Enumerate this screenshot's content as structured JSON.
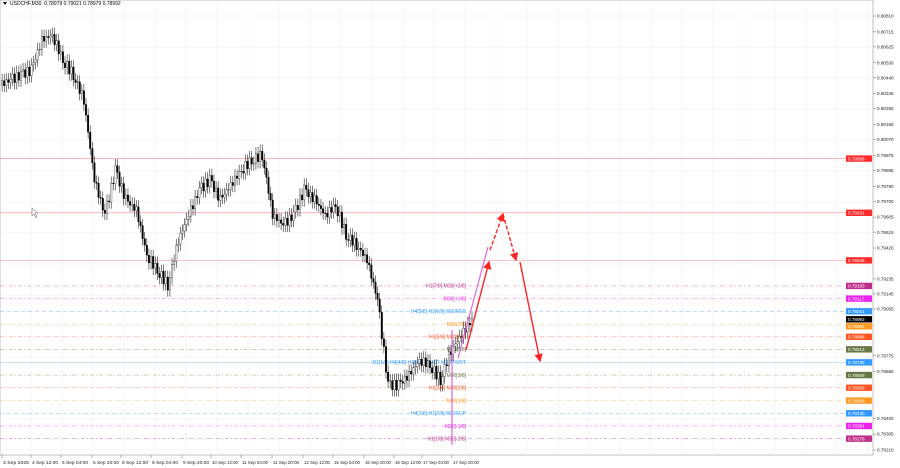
{
  "header": {
    "symbol_timeframe": "USDCHF,M30",
    "ohlc": "0.78979 0.79021 0.78979 0.78992"
  },
  "colors": {
    "candles": "#000000",
    "grid": "#ececec",
    "resistance_line": "#f08080",
    "arrow": "#ff2222",
    "trend_line": "#dd66dd"
  },
  "chart_data": {
    "type": "line",
    "title": "USDCHF,M30",
    "xlabel": "",
    "ylabel": "",
    "ylim": [
      0.7821,
      0.8081
    ],
    "grid": true,
    "x_ticks": [
      "3 Sep 2025",
      "4 Sep 12:00",
      "5 Sep 04:00",
      "5 Sep 20:00",
      "8 Sep 12:00",
      "9 Sep 04:00",
      "9 Sep 20:00",
      "10 Sep 12:00",
      "11 Sep 04:00",
      "11 Sep 20:00",
      "12 Sep 12:00",
      "15 Sep 04:00",
      "15 Sep 20:00",
      "16 Sep 12:00",
      "17 Sep 04:00",
      "17 Sep 20:00"
    ],
    "y_ticks": [
      0.8081,
      0.80715,
      0.80625,
      0.8053,
      0.8044,
      0.80345,
      0.80255,
      0.8016,
      0.8007,
      0.79975,
      0.79885,
      0.7979,
      0.797,
      0.79605,
      0.79515,
      0.7942,
      0.79235,
      0.79145,
      0.79055,
      0.78775,
      0.7868,
      0.784,
      0.78305,
      0.7821
    ],
    "series": [
      {
        "values": [
          0.80397,
          0.80427,
          0.80457,
          0.80487,
          0.80666,
          0.80696,
          0.80546,
          0.80457,
          0.80307,
          0.79827,
          0.79618,
          0.79887,
          0.79708,
          0.79648,
          0.79378,
          0.79288,
          0.79198,
          0.79468,
          0.79618,
          0.79768,
          0.79827,
          0.79708,
          0.79798,
          0.79887,
          0.79947,
          0.79977,
          0.79618,
          0.79558,
          0.79618,
          0.79768,
          0.79708,
          0.79618,
          0.79678,
          0.79498,
          0.79438,
          0.79348,
          0.79109,
          0.78599,
          0.78599,
          0.78659,
          0.78749,
          0.78719,
          0.78629,
          0.78809,
          0.78899,
          0.78989
        ]
      }
    ],
    "levels": [
      {
        "price": "0.79956",
        "label": "",
        "color": "#ff2a2a",
        "style": "solid"
      },
      {
        "price": "0.79631",
        "label": "",
        "color": "#ff2a2a",
        "style": "solid"
      },
      {
        "price": "0.79346",
        "label": "",
        "color": "#ff2a2a",
        "style": "solid"
      },
      {
        "price": "0.79193",
        "label": "H1[7/8] M30[+2/8]",
        "color": "#c0308a",
        "style": "dashdot"
      },
      {
        "price": "0.79117",
        "label": "M30[+1/8]",
        "color": "#ee22ee",
        "style": "dashdot"
      },
      {
        "price": "0.79041",
        "label": "H4[5/8] H1[6/8] M30RES",
        "color": "#3399ff",
        "style": "dash"
      },
      {
        "price": "0.78993",
        "label": "",
        "color": "#000000",
        "style": "none"
      },
      {
        "price": "0.78964",
        "label": "M30[7/8]",
        "color": "#ff9922",
        "style": "dashdot"
      },
      {
        "price": "0.78888",
        "label": "H1[5/8] M30[6/8]",
        "color": "#ff5522",
        "style": "dashdot"
      },
      {
        "price": "0.78813",
        "label": "M30[5/8]",
        "color": "#667744",
        "style": "dashdot"
      },
      {
        "price": "0.78735",
        "label": "D1[1/8] H4[4/8] H1[4/8] PIVOT M30PIVOT",
        "color": "#3399ff",
        "style": "solid"
      },
      {
        "price": "0.78659",
        "label": "M30[3/8]",
        "color": "#667744",
        "style": "dashdot"
      },
      {
        "price": "0.78583",
        "label": "H1[3/8] M30[2/8]",
        "color": "#ff5522",
        "style": "dashdot"
      },
      {
        "price": "0.78506",
        "label": "M30[1/8]",
        "color": "#ff9922",
        "style": "dashdot"
      },
      {
        "price": "0.78430",
        "label": "H4[1/8] H1[2/8] M30SUP",
        "color": "#3399ff",
        "style": "dash"
      },
      {
        "price": "0.78354",
        "label": "M30[-1/8]",
        "color": "#ee22ee",
        "style": "dashdot"
      },
      {
        "price": "0.78278",
        "label": "H1[1/8] M30[-2/8]",
        "color": "#c0308a",
        "style": "dashdot"
      }
    ]
  }
}
